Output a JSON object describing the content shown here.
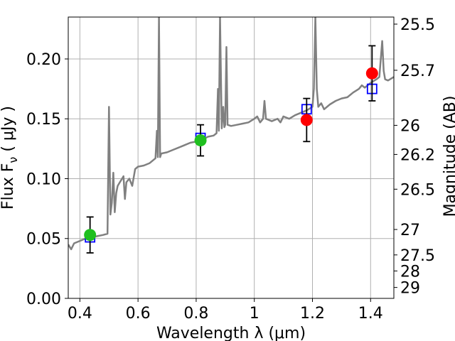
{
  "chart_data": {
    "type": "line",
    "xlabel": "Wavelength  λ (μm)",
    "ylabel": "Flux  F",
    "ylabel_sub": "ν",
    "ylabel_unit": "  ( μJy )",
    "y2label": "Magnitude (AB)",
    "xlim": [
      0.36,
      1.48
    ],
    "ylim": [
      0.0,
      0.235
    ],
    "grid": true,
    "x_ticks": [
      {
        "value": 0.4,
        "label": "0.4"
      },
      {
        "value": 0.6,
        "label": "0.6"
      },
      {
        "value": 0.8,
        "label": "0.8"
      },
      {
        "value": 1.0,
        "label": "1"
      },
      {
        "value": 1.2,
        "label": "1.2"
      },
      {
        "value": 1.4,
        "label": "1.4"
      }
    ],
    "y_ticks": [
      {
        "value": 0.0,
        "label": "0.00"
      },
      {
        "value": 0.05,
        "label": "0.05"
      },
      {
        "value": 0.1,
        "label": "0.10"
      },
      {
        "value": 0.15,
        "label": "0.15"
      },
      {
        "value": 0.2,
        "label": "0.20"
      }
    ],
    "y2_ticks": [
      {
        "value": 25.5,
        "label": "25.5"
      },
      {
        "value": 25.7,
        "label": "25.7"
      },
      {
        "value": 26,
        "label": "26"
      },
      {
        "value": 26.2,
        "label": "26.2"
      },
      {
        "value": 26.5,
        "label": "26.5"
      },
      {
        "value": 27,
        "label": "27"
      },
      {
        "value": 27.5,
        "label": "27.5"
      },
      {
        "value": 28,
        "label": "28"
      },
      {
        "value": 29,
        "label": "29"
      }
    ],
    "spectrum": {
      "color": "#808080",
      "points": [
        [
          0.36,
          0.045
        ],
        [
          0.37,
          0.041
        ],
        [
          0.38,
          0.046
        ],
        [
          0.4,
          0.048
        ],
        [
          0.42,
          0.05
        ],
        [
          0.44,
          0.051
        ],
        [
          0.46,
          0.052
        ],
        [
          0.48,
          0.053
        ],
        [
          0.495,
          0.054
        ],
        [
          0.5,
          0.16
        ],
        [
          0.505,
          0.07
        ],
        [
          0.51,
          0.08
        ],
        [
          0.515,
          0.105
        ],
        [
          0.52,
          0.072
        ],
        [
          0.525,
          0.088
        ],
        [
          0.53,
          0.094
        ],
        [
          0.54,
          0.098
        ],
        [
          0.55,
          0.102
        ],
        [
          0.555,
          0.083
        ],
        [
          0.56,
          0.097
        ],
        [
          0.57,
          0.1
        ],
        [
          0.58,
          0.094
        ],
        [
          0.59,
          0.108
        ],
        [
          0.6,
          0.11
        ],
        [
          0.62,
          0.111
        ],
        [
          0.64,
          0.113
        ],
        [
          0.66,
          0.117
        ],
        [
          0.665,
          0.14
        ],
        [
          0.668,
          0.118
        ],
        [
          0.672,
          0.235
        ],
        [
          0.676,
          0.118
        ],
        [
          0.68,
          0.121
        ],
        [
          0.7,
          0.122
        ],
        [
          0.72,
          0.124
        ],
        [
          0.74,
          0.126
        ],
        [
          0.76,
          0.128
        ],
        [
          0.78,
          0.13
        ],
        [
          0.8,
          0.131
        ],
        [
          0.82,
          0.132
        ],
        [
          0.84,
          0.135
        ],
        [
          0.86,
          0.136
        ],
        [
          0.87,
          0.138
        ],
        [
          0.875,
          0.175
        ],
        [
          0.878,
          0.14
        ],
        [
          0.882,
          0.235
        ],
        [
          0.888,
          0.142
        ],
        [
          0.893,
          0.16
        ],
        [
          0.897,
          0.143
        ],
        [
          0.9,
          0.145
        ],
        [
          0.904,
          0.21
        ],
        [
          0.908,
          0.145
        ],
        [
          0.92,
          0.144
        ],
        [
          0.94,
          0.145
        ],
        [
          0.96,
          0.146
        ],
        [
          0.98,
          0.147
        ],
        [
          1.0,
          0.15
        ],
        [
          1.01,
          0.152
        ],
        [
          1.02,
          0.147
        ],
        [
          1.03,
          0.15
        ],
        [
          1.035,
          0.165
        ],
        [
          1.04,
          0.15
        ],
        [
          1.06,
          0.148
        ],
        [
          1.08,
          0.15
        ],
        [
          1.09,
          0.147
        ],
        [
          1.1,
          0.152
        ],
        [
          1.12,
          0.15
        ],
        [
          1.14,
          0.153
        ],
        [
          1.16,
          0.155
        ],
        [
          1.18,
          0.157
        ],
        [
          1.2,
          0.16
        ],
        [
          1.205,
          0.175
        ],
        [
          1.21,
          0.235
        ],
        [
          1.215,
          0.175
        ],
        [
          1.22,
          0.16
        ],
        [
          1.23,
          0.163
        ],
        [
          1.24,
          0.158
        ],
        [
          1.26,
          0.162
        ],
        [
          1.28,
          0.165
        ],
        [
          1.3,
          0.167
        ],
        [
          1.32,
          0.168
        ],
        [
          1.34,
          0.172
        ],
        [
          1.36,
          0.175
        ],
        [
          1.37,
          0.178
        ],
        [
          1.38,
          0.176
        ],
        [
          1.4,
          0.18
        ],
        [
          1.42,
          0.183
        ],
        [
          1.43,
          0.185
        ],
        [
          1.44,
          0.215
        ],
        [
          1.445,
          0.19
        ],
        [
          1.45,
          0.183
        ],
        [
          1.46,
          0.182
        ],
        [
          1.48,
          0.185
        ]
      ]
    },
    "observed": [
      {
        "x": 0.435,
        "y": 0.053,
        "yerr": 0.015,
        "color": "#1fbf1f"
      },
      {
        "x": 0.815,
        "y": 0.132,
        "yerr": 0.013,
        "color": "#1fbf1f"
      },
      {
        "x": 1.18,
        "y": 0.149,
        "yerr": 0.018,
        "color": "#ff0000"
      },
      {
        "x": 1.405,
        "y": 0.188,
        "yerr": 0.023,
        "color": "#ff0000"
      }
    ],
    "model": [
      {
        "x": 0.435,
        "y": 0.051,
        "color": "#0000ff"
      },
      {
        "x": 0.815,
        "y": 0.134,
        "color": "#0000ff"
      },
      {
        "x": 1.18,
        "y": 0.158,
        "color": "#0000ff"
      },
      {
        "x": 1.405,
        "y": 0.175,
        "color": "#0000ff"
      }
    ]
  }
}
